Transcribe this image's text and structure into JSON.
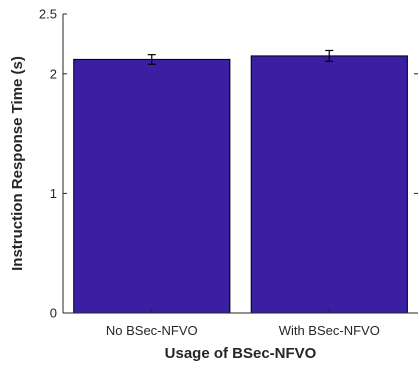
{
  "chart_data": {
    "type": "bar",
    "categories": [
      "No BSec-NFVO",
      "With BSec-NFVO"
    ],
    "values": [
      2.12,
      2.15
    ],
    "error": [
      0.04,
      0.045
    ],
    "xlabel": "Usage of BSec-NFVO",
    "ylabel": "Instruction Response Time (s)",
    "ylim": [
      0,
      2.5
    ],
    "yticks": [
      0,
      1,
      2,
      2.5
    ],
    "ytick_labels": [
      "0",
      "1",
      "2",
      "2.5"
    ],
    "grid": false,
    "colors": {
      "bar_fill": "#3a1fa3",
      "bar_edge": "#000000",
      "axis": "#262626"
    }
  }
}
